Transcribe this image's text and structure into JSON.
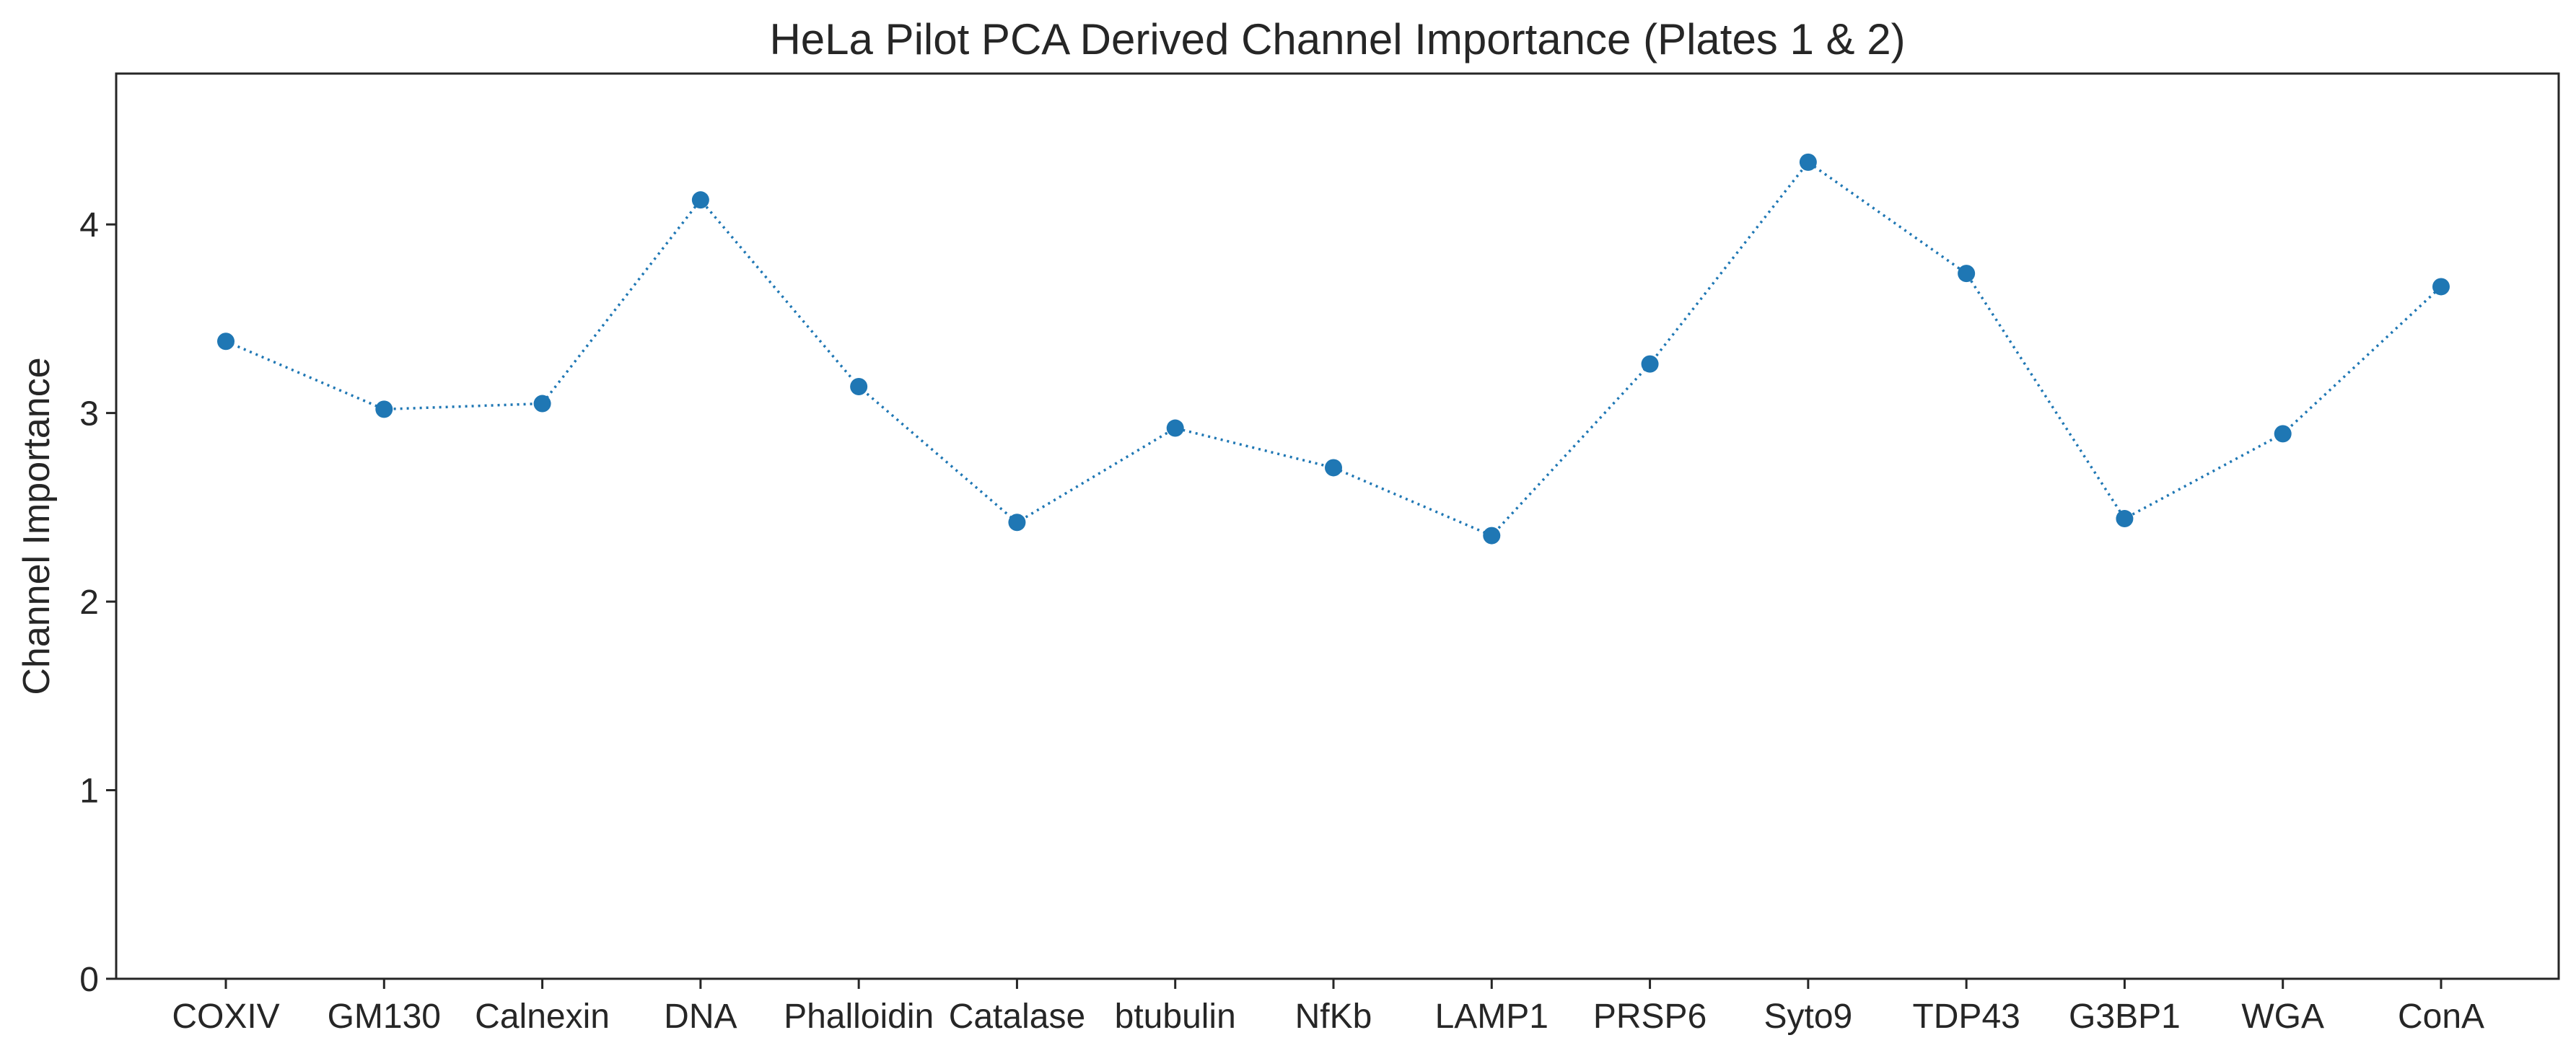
{
  "chart_data": {
    "type": "line",
    "title": "HeLa Pilot PCA Derived Channel Importance (Plates 1 & 2)",
    "xlabel": "",
    "ylabel": "Channel Importance",
    "categories": [
      "COXIV",
      "GM130",
      "Calnexin",
      "DNA",
      "Phalloidin",
      "Catalase",
      "btubulin",
      "NfKb",
      "LAMP1",
      "PRSP6",
      "Syto9",
      "TDP43",
      "G3BP1",
      "WGA",
      "ConA"
    ],
    "series": [
      {
        "values": [
          3.38,
          3.02,
          3.05,
          4.13,
          3.14,
          2.42,
          2.92,
          2.71,
          2.35,
          3.26,
          4.33,
          3.74,
          2.44,
          2.89,
          3.67
        ],
        "color": "#1f77b4",
        "line_style": "dotted",
        "marker": "circle"
      }
    ],
    "ylim": [
      0,
      4.8
    ],
    "yticks": [
      0,
      1,
      2,
      3,
      4
    ],
    "grid": false,
    "legend": "none"
  }
}
